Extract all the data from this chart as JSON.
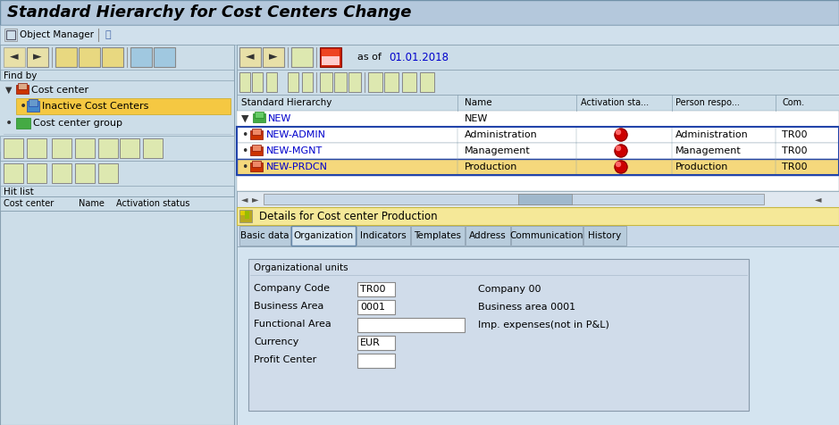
{
  "title": "Standard Hierarchy for Cost Centers Change",
  "bg_main": "#c8dcea",
  "title_bar_bg": "#b0c8dc",
  "obj_mgr_bar_bg": "#d4e4f0",
  "left_panel_bg": "#ccdde8",
  "right_panel_bg": "#ccdde8",
  "toolbar_btn_bg": "#e8e0b0",
  "toolbar_bg": "#d4e4f0",
  "table_bg": "#ffffff",
  "table_header_bg": "#d4e4f0",
  "selected_yellow": "#f5d87c",
  "highlight_gold": "#f0c840",
  "detail_bar_bg": "#f5e8a0",
  "tab_active_bg": "#d4e4f0",
  "tab_inactive_bg": "#c0d0e0",
  "form_area_bg": "#d8e8f4",
  "org_box_bg": "#d0e0f0",
  "input_bg": "#ffffff",
  "red_dot": "#cc0000",
  "date_color": "#0000cc",
  "blue_border": "#2244aa",
  "white": "#ffffff",
  "gray_btn": "#c8d8e8",
  "dark_gray": "#888888",
  "table_rows": [
    {
      "id": "NEW-ADMIN",
      "name": "Administration",
      "person": "Administration",
      "comp": "TR00"
    },
    {
      "id": "NEW-MGNT",
      "name": "Management",
      "person": "Management",
      "comp": "TR00"
    },
    {
      "id": "NEW-PRDCN",
      "name": "Production",
      "person": "Production",
      "comp": "TR00"
    }
  ],
  "form_fields": [
    {
      "label": "Company Code",
      "value": "TR00",
      "right_label": "Company 00",
      "wide": false
    },
    {
      "label": "Business Area",
      "value": "0001",
      "right_label": "Business area 0001",
      "wide": false
    },
    {
      "label": "Functional Area",
      "value": "",
      "right_label": "Imp. expenses(not in P&L)",
      "wide": true
    },
    {
      "label": "Currency",
      "value": "EUR",
      "right_label": "",
      "wide": false
    },
    {
      "label": "Profit Center",
      "value": "",
      "right_label": "",
      "wide": false
    }
  ],
  "tabs": [
    "Basic data",
    "Organization",
    "Indicators",
    "Templates",
    "Address",
    "Communication",
    "History"
  ],
  "active_tab": "Organization"
}
